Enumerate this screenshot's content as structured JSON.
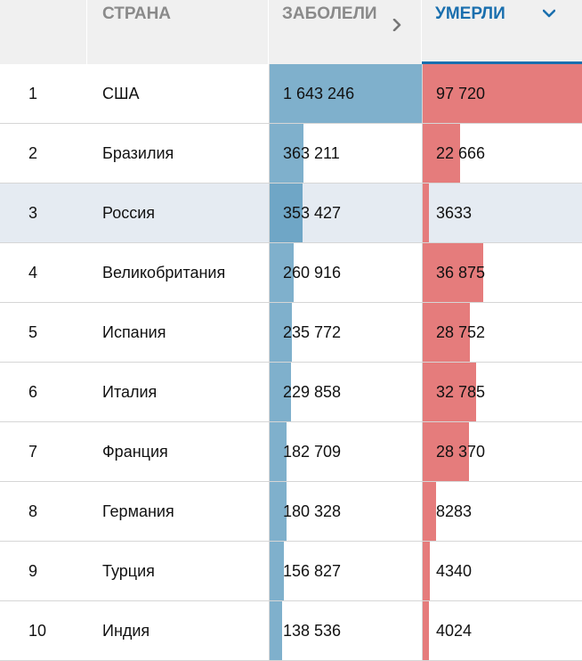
{
  "header": {
    "rank_label": "",
    "country_label": "СТРАНА",
    "cases_label": "ЗАБОЛЕЛИ",
    "deaths_label": "УМЕРЛИ"
  },
  "colors": {
    "cases_bar": "#7fb0cc",
    "deaths_bar": "#e57c7c",
    "accent": "#1a6fae",
    "highlight_row": "#e5ebf2"
  },
  "icons": {
    "cases_sort": "chevron-right-icon",
    "deaths_sort": "chevron-down-icon"
  },
  "highlight_country": "Россия",
  "rows": [
    {
      "rank": "1",
      "country": "США",
      "cases": "1 643 246",
      "deaths": "97 720",
      "cases_n": 1643246,
      "deaths_n": 97720
    },
    {
      "rank": "2",
      "country": "Бразилия",
      "cases": "363 211",
      "deaths": "22 666",
      "cases_n": 363211,
      "deaths_n": 22666
    },
    {
      "rank": "3",
      "country": "Россия",
      "cases": "353 427",
      "deaths": "3633",
      "cases_n": 353427,
      "deaths_n": 3633
    },
    {
      "rank": "4",
      "country": "Великобритания",
      "cases": "260 916",
      "deaths": "36 875",
      "cases_n": 260916,
      "deaths_n": 36875
    },
    {
      "rank": "5",
      "country": "Испания",
      "cases": "235 772",
      "deaths": "28 752",
      "cases_n": 235772,
      "deaths_n": 28752
    },
    {
      "rank": "6",
      "country": "Италия",
      "cases": "229 858",
      "deaths": "32 785",
      "cases_n": 229858,
      "deaths_n": 32785
    },
    {
      "rank": "7",
      "country": "Франция",
      "cases": "182 709",
      "deaths": "28 370",
      "cases_n": 182709,
      "deaths_n": 28370
    },
    {
      "rank": "8",
      "country": "Германия",
      "cases": "180 328",
      "deaths": "8283",
      "cases_n": 180328,
      "deaths_n": 8283
    },
    {
      "rank": "9",
      "country": "Турция",
      "cases": "156 827",
      "deaths": "4340",
      "cases_n": 156827,
      "deaths_n": 4340
    },
    {
      "rank": "10",
      "country": "Индия",
      "cases": "138 536",
      "deaths": "4024",
      "cases_n": 138536,
      "deaths_n": 4024
    }
  ]
}
